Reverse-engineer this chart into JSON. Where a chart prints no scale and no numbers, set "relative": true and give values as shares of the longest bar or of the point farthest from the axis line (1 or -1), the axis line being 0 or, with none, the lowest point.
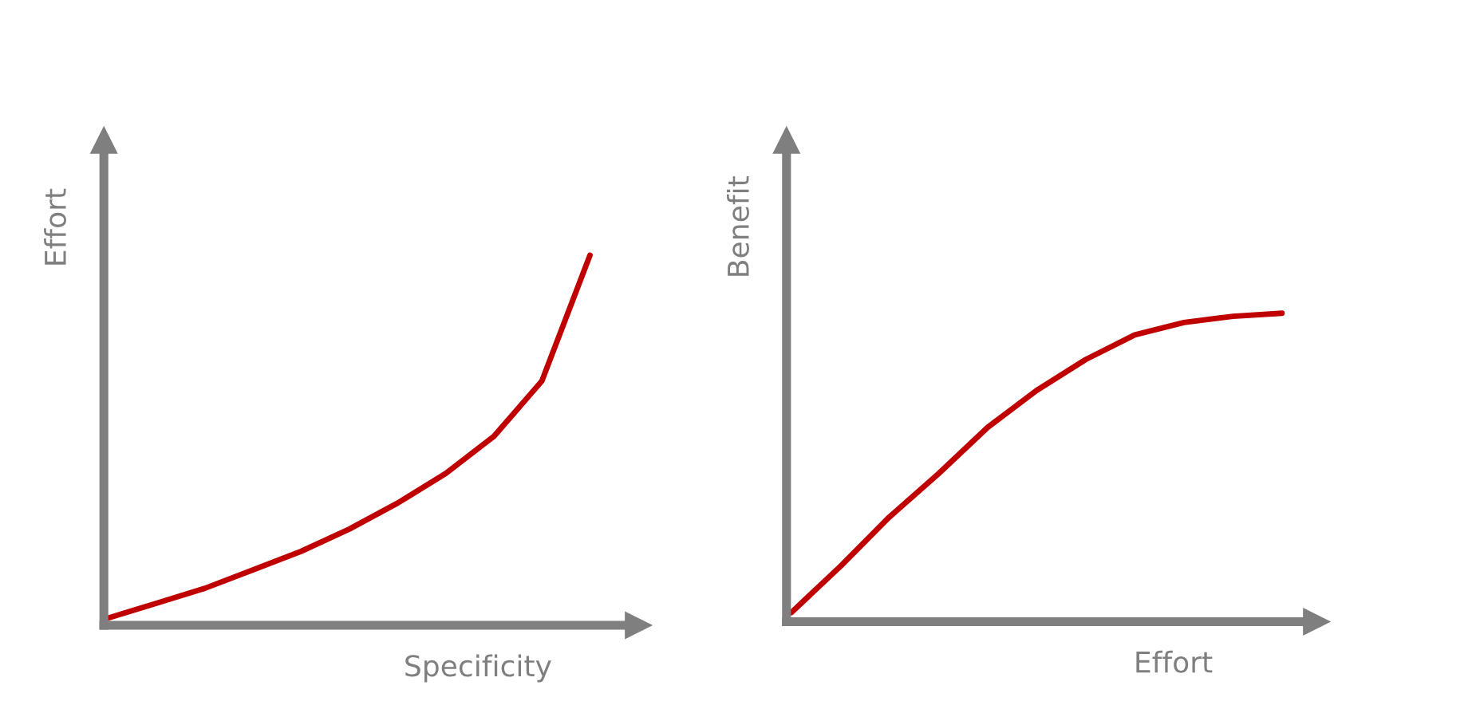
{
  "chart_data": [
    {
      "type": "line",
      "relative": true,
      "xlabel": "Specificity",
      "ylabel": "Effort",
      "categories": [
        null,
        null,
        null,
        null,
        null,
        null,
        null,
        null,
        null,
        null,
        null
      ],
      "series": [
        {
          "color": "#c00000",
          "values": [
            0.02,
            0.06,
            0.1,
            0.15,
            0.2,
            0.26,
            0.33,
            0.41,
            0.51,
            0.66,
            1.0
          ]
        }
      ]
    },
    {
      "type": "line",
      "relative": true,
      "xlabel": "Effort",
      "ylabel": "Benefit",
      "categories": [
        null,
        null,
        null,
        null,
        null,
        null,
        null,
        null,
        null,
        null,
        null
      ],
      "series": [
        {
          "color": "#c00000",
          "values": [
            0.03,
            0.18,
            0.34,
            0.48,
            0.63,
            0.75,
            0.85,
            0.93,
            0.97,
            0.99,
            1.0
          ]
        }
      ]
    }
  ]
}
